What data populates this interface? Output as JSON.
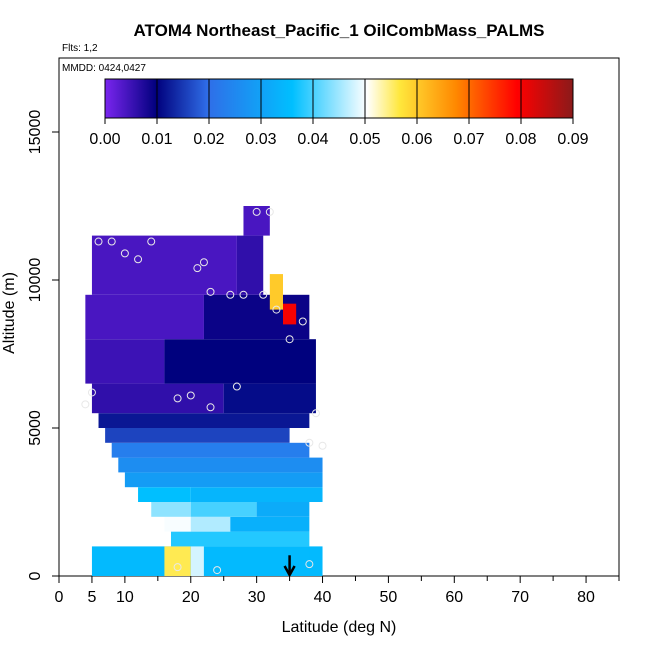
{
  "chart_data": {
    "type": "heatmap",
    "title": "ATOM4 Northeast_Pacific_1 OilCombMass_PALMS",
    "flights_label": "Flts: 1,2",
    "dates_label": "MMDD: 0424,0427",
    "xlabel": "Latitude (deg N)",
    "ylabel": "Altitude (m)",
    "xlim": [
      0,
      85
    ],
    "ylim": [
      0,
      17500
    ],
    "x_ticks": [
      0,
      5,
      10,
      20,
      30,
      40,
      50,
      60,
      70,
      80
    ],
    "x_tick_labels": [
      "0",
      "5",
      "10",
      "20",
      "30",
      "40",
      "50",
      "60",
      "70",
      "80"
    ],
    "y_ticks": [
      0,
      5000,
      10000,
      15000
    ],
    "y_tick_labels": [
      "0",
      "5000",
      "10000",
      "15000"
    ],
    "colorbar": {
      "min": 0,
      "max": 0.09,
      "tick_values": [
        0,
        0.01,
        0.02,
        0.03,
        0.04,
        0.05,
        0.06,
        0.07,
        0.08,
        0.09
      ],
      "tick_labels": [
        "0.00",
        "0.01",
        "0.02",
        "0.03",
        "0.04",
        "0.05",
        "0.06",
        "0.07",
        "0.08",
        "0.09"
      ]
    },
    "colors": {
      "stops": [
        "#7a25ef",
        "#00007d",
        "#2f6ee8",
        "#00bfff",
        "#ffffff",
        "#ffe73c",
        "#ff8800",
        "#ff0000",
        "#8b1a1a"
      ]
    },
    "cells": [
      {
        "lat": [
          5,
          40
        ],
        "alt": [
          0,
          1000
        ],
        "value": 0.035
      },
      {
        "lat": [
          16,
          20
        ],
        "alt": [
          0,
          1000
        ],
        "value": 0.056
      },
      {
        "lat": [
          20,
          22
        ],
        "alt": [
          0,
          1000
        ],
        "value": 0.048
      },
      {
        "lat": [
          22,
          38
        ],
        "alt": [
          0,
          1000
        ],
        "value": 0.035
      },
      {
        "lat": [
          17,
          38
        ],
        "alt": [
          1000,
          1500
        ],
        "value": 0.038
      },
      {
        "lat": [
          16,
          20
        ],
        "alt": [
          1500,
          2000
        ],
        "value": 0.05
      },
      {
        "lat": [
          20,
          26
        ],
        "alt": [
          1500,
          2000
        ],
        "value": 0.046
      },
      {
        "lat": [
          26,
          38
        ],
        "alt": [
          1500,
          2000
        ],
        "value": 0.033
      },
      {
        "lat": [
          14,
          20
        ],
        "alt": [
          2000,
          2500
        ],
        "value": 0.044
      },
      {
        "lat": [
          20,
          30
        ],
        "alt": [
          2000,
          2500
        ],
        "value": 0.04
      },
      {
        "lat": [
          30,
          38
        ],
        "alt": [
          2000,
          2500
        ],
        "value": 0.032
      },
      {
        "lat": [
          12,
          20
        ],
        "alt": [
          2500,
          3000
        ],
        "value": 0.036
      },
      {
        "lat": [
          20,
          40
        ],
        "alt": [
          2500,
          3000
        ],
        "value": 0.034
      },
      {
        "lat": [
          10,
          40
        ],
        "alt": [
          3000,
          3500
        ],
        "value": 0.029
      },
      {
        "lat": [
          9,
          40
        ],
        "alt": [
          3500,
          4000
        ],
        "value": 0.026
      },
      {
        "lat": [
          8,
          38
        ],
        "alt": [
          4000,
          4500
        ],
        "value": 0.023
      },
      {
        "lat": [
          7,
          35
        ],
        "alt": [
          4500,
          5000
        ],
        "value": 0.016
      },
      {
        "lat": [
          6,
          38
        ],
        "alt": [
          5000,
          5500
        ],
        "value": 0.012
      },
      {
        "lat": [
          5,
          25
        ],
        "alt": [
          5500,
          6500
        ],
        "value": 0.006
      },
      {
        "lat": [
          25,
          39
        ],
        "alt": [
          5500,
          6500
        ],
        "value": 0.011
      },
      {
        "lat": [
          4,
          16
        ],
        "alt": [
          6500,
          8000
        ],
        "value": 0.005
      },
      {
        "lat": [
          16,
          39
        ],
        "alt": [
          6500,
          8000
        ],
        "value": 0.01
      },
      {
        "lat": [
          4,
          22
        ],
        "alt": [
          8000,
          9500
        ],
        "value": 0.004
      },
      {
        "lat": [
          22,
          38
        ],
        "alt": [
          8000,
          9500
        ],
        "value": 0.009
      },
      {
        "lat": [
          5,
          27
        ],
        "alt": [
          9500,
          11500
        ],
        "value": 0.004
      },
      {
        "lat": [
          27,
          31
        ],
        "alt": [
          9500,
          11500
        ],
        "value": 0.006
      },
      {
        "lat": [
          32,
          34
        ],
        "alt": [
          9000,
          10200
        ],
        "value": 0.06
      },
      {
        "lat": [
          34,
          36
        ],
        "alt": [
          8500,
          9200
        ],
        "value": 0.08
      },
      {
        "lat": [
          28,
          32
        ],
        "alt": [
          11500,
          12500
        ],
        "value": 0.004
      }
    ],
    "points": [
      {
        "lat": 4,
        "alt": 5800
      },
      {
        "lat": 5,
        "alt": 6200
      },
      {
        "lat": 6,
        "alt": 11300
      },
      {
        "lat": 8,
        "alt": 11300
      },
      {
        "lat": 10,
        "alt": 10900
      },
      {
        "lat": 12,
        "alt": 10700
      },
      {
        "lat": 14,
        "alt": 11300
      },
      {
        "lat": 18,
        "alt": 6000
      },
      {
        "lat": 20,
        "alt": 6100
      },
      {
        "lat": 21,
        "alt": 10400
      },
      {
        "lat": 22,
        "alt": 10600
      },
      {
        "lat": 23,
        "alt": 9600
      },
      {
        "lat": 26,
        "alt": 9500
      },
      {
        "lat": 28,
        "alt": 9500
      },
      {
        "lat": 30,
        "alt": 12300
      },
      {
        "lat": 31,
        "alt": 9500
      },
      {
        "lat": 32,
        "alt": 12300
      },
      {
        "lat": 33,
        "alt": 9000
      },
      {
        "lat": 35,
        "alt": 8000
      },
      {
        "lat": 37,
        "alt": 8600
      },
      {
        "lat": 23,
        "alt": 5700
      },
      {
        "lat": 27,
        "alt": 6400
      },
      {
        "lat": 38,
        "alt": 4500
      },
      {
        "lat": 39,
        "alt": 5500
      },
      {
        "lat": 40,
        "alt": 4400
      },
      {
        "lat": 18,
        "alt": 300
      },
      {
        "lat": 24,
        "alt": 200
      },
      {
        "lat": 38,
        "alt": 400
      }
    ],
    "arrow": {
      "lat": 35,
      "alt_top": 700
    }
  }
}
